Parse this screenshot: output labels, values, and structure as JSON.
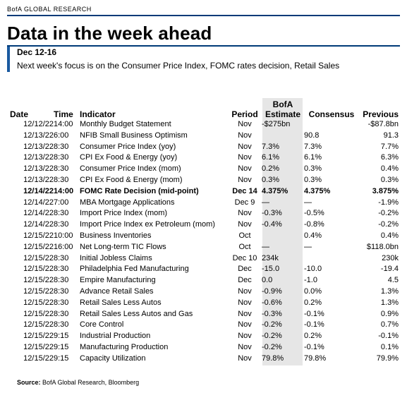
{
  "brand": "BofA GLOBAL RESEARCH",
  "title": "Data in the week ahead",
  "subhead": {
    "date": "Dec 12-16",
    "text": "Next week's focus is on the Consumer Price Index, FOMC rates decision, Retail Sales"
  },
  "table": {
    "headers": {
      "date": "Date",
      "time": "Time",
      "indicator": "Indicator",
      "period": "Period",
      "estimate_line1": "BofA",
      "estimate_line2": "Estimate",
      "consensus": "Consensus",
      "previous": "Previous"
    },
    "rows": [
      {
        "date": "12/12/22",
        "time": "14:00",
        "indicator": "Monthly Budget Statement",
        "indent": 0,
        "period": "Nov",
        "estimate": "-$275bn",
        "consensus": "",
        "previous": "-$87.8bn",
        "bold": false
      },
      {
        "date": "12/13/22",
        "time": "6:00",
        "indicator": "NFIB Small Business Optimism",
        "indent": 0,
        "period": "Nov",
        "estimate": "",
        "consensus": "90.8",
        "previous": "91.3",
        "bold": false
      },
      {
        "date": "12/13/22",
        "time": "8:30",
        "indicator": "Consumer Price Index (yoy)",
        "indent": 0,
        "period": "Nov",
        "estimate": "7.3%",
        "consensus": "7.3%",
        "previous": "7.7%",
        "bold": false
      },
      {
        "date": "12/13/22",
        "time": "8:30",
        "indicator": "CPI Ex Food & Energy (yoy)",
        "indent": 1,
        "period": "Nov",
        "estimate": "6.1%",
        "consensus": "6.1%",
        "previous": "6.3%",
        "bold": false
      },
      {
        "date": "12/13/22",
        "time": "8:30",
        "indicator": "Consumer Price Index (mom)",
        "indent": 0,
        "period": "Nov",
        "estimate": "0.2%",
        "consensus": "0.3%",
        "previous": "0.4%",
        "bold": false
      },
      {
        "date": "12/13/22",
        "time": "8:30",
        "indicator": "CPI Ex Food & Energy (mom)",
        "indent": 1,
        "period": "Nov",
        "estimate": "0.3%",
        "consensus": "0.3%",
        "previous": "0.3%",
        "bold": false
      },
      {
        "date": "12/14/22",
        "time": "14:00",
        "indicator": "FOMC Rate Decision (mid-point)",
        "indent": 0,
        "period": "Dec 14",
        "estimate": "4.375%",
        "consensus": "4.375%",
        "previous": "3.875%",
        "bold": true
      },
      {
        "date": "12/14/22",
        "time": "7:00",
        "indicator": "MBA Mortgage Applications",
        "indent": 0,
        "period": "Dec 9",
        "estimate": "—",
        "consensus": "—",
        "previous": "-1.9%",
        "bold": false
      },
      {
        "date": "12/14/22",
        "time": "8:30",
        "indicator": "Import Price Index (mom)",
        "indent": 0,
        "period": "Nov",
        "estimate": "-0.3%",
        "consensus": "-0.5%",
        "previous": "-0.2%",
        "bold": false
      },
      {
        "date": "12/14/22",
        "time": "8:30",
        "indicator": "Import Price Index ex Petroleum (mom)",
        "indent": 1,
        "period": "Nov",
        "estimate": "-0.4%",
        "consensus": "-0.8%",
        "previous": "-0.2%",
        "bold": false
      },
      {
        "date": "12/15/22",
        "time": "10:00",
        "indicator": "Business Inventories",
        "indent": 0,
        "period": "Oct",
        "estimate": "",
        "consensus": "0.4%",
        "previous": "0.4%",
        "bold": false
      },
      {
        "date": "12/15/22",
        "time": "16:00",
        "indicator": "Net Long-term TIC Flows",
        "indent": 0,
        "period": "Oct",
        "estimate": "—",
        "consensus": "—",
        "previous": "$118.0bn",
        "bold": false
      },
      {
        "date": "12/15/22",
        "time": "8:30",
        "indicator": "Initial Jobless Claims",
        "indent": 0,
        "period": "Dec 10",
        "estimate": "234k",
        "consensus": "",
        "previous": "230k",
        "bold": false
      },
      {
        "date": "12/15/22",
        "time": "8:30",
        "indicator": "Philadelphia Fed Manufacturing",
        "indent": 0,
        "period": "Dec",
        "estimate": "-15.0",
        "consensus": "-10.0",
        "previous": "-19.4",
        "bold": false
      },
      {
        "date": "12/15/22",
        "time": "8:30",
        "indicator": "Empire Manufacturing",
        "indent": 0,
        "period": "Dec",
        "estimate": "0.0",
        "consensus": "-1.0",
        "previous": "4.5",
        "bold": false
      },
      {
        "date": "12/15/22",
        "time": "8:30",
        "indicator": "Advance Retail Sales",
        "indent": 0,
        "period": "Nov",
        "estimate": "-0.9%",
        "consensus": "0.0%",
        "previous": "1.3%",
        "bold": false
      },
      {
        "date": "12/15/22",
        "time": "8:30",
        "indicator": "Retail Sales Less Autos",
        "indent": 1,
        "period": "Nov",
        "estimate": "-0.6%",
        "consensus": "0.2%",
        "previous": "1.3%",
        "bold": false
      },
      {
        "date": "12/15/22",
        "time": "8:30",
        "indicator": "Retail Sales Less Autos and Gas",
        "indent": 1,
        "period": "Nov",
        "estimate": "-0.3%",
        "consensus": "-0.1%",
        "previous": "0.9%",
        "bold": false
      },
      {
        "date": "12/15/22",
        "time": "8:30",
        "indicator": "Core Control",
        "indent": 1,
        "period": "Nov",
        "estimate": "-0.2%",
        "consensus": "-0.1%",
        "previous": "0.7%",
        "bold": false
      },
      {
        "date": "12/15/22",
        "time": "9:15",
        "indicator": "Industrial Production",
        "indent": 0,
        "period": "Nov",
        "estimate": "-0.2%",
        "consensus": "0.2%",
        "previous": "-0.1%",
        "bold": false
      },
      {
        "date": "12/15/22",
        "time": "9:15",
        "indicator": "Manufacturing Production",
        "indent": 1,
        "period": "Nov",
        "estimate": "-0.2%",
        "consensus": "-0.1%",
        "previous": "0.1%",
        "bold": false
      },
      {
        "date": "12/15/22",
        "time": "9:15",
        "indicator": "Capacity Utilization",
        "indent": 1,
        "period": "Nov",
        "estimate": "79.8%",
        "consensus": "79.8%",
        "previous": "79.9%",
        "bold": false
      }
    ]
  },
  "source": {
    "label": "Source:",
    "text": "BofA Global Research, Bloomberg"
  },
  "colors": {
    "brand_rule": "#003a78",
    "subhead_bar": "#1a5aa0",
    "estimate_shade": "#e6e6e6"
  }
}
